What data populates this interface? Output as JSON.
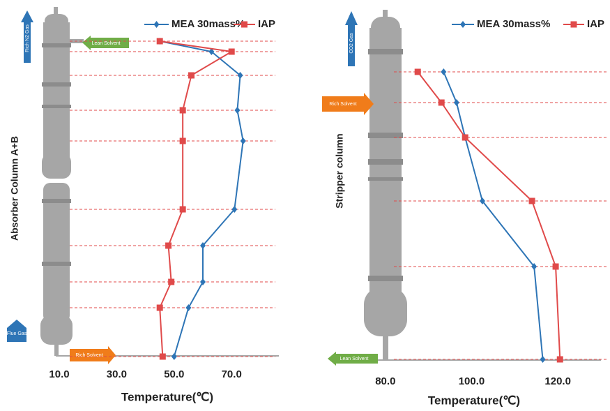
{
  "chart_data": [
    {
      "type": "line",
      "xlabel": "Temperature(℃)",
      "ylabel": "Absorber Column A+B",
      "xlim": [
        10,
        85
      ],
      "xticks": [
        {
          "value": 10,
          "label": "10.0"
        },
        {
          "value": 30,
          "label": "30.0"
        },
        {
          "value": 50,
          "label": "50.0"
        },
        {
          "value": 70,
          "label": "70.0"
        }
      ],
      "series": [
        {
          "name": "MEA 30mass%",
          "color": "#2e75b6",
          "marker": "diamond",
          "values": [
            45,
            63,
            73,
            72,
            74,
            71,
            60,
            60,
            55,
            50
          ]
        },
        {
          "name": "IAP",
          "color": "#e04a4a",
          "marker": "square",
          "values": [
            45,
            70,
            56,
            53,
            53,
            53,
            48,
            49,
            45,
            46
          ]
        }
      ],
      "annotations": [
        "Rich N2 Gas",
        "Lean Solvent",
        "Flue Gas",
        "Rich Solvent"
      ]
    },
    {
      "type": "line",
      "xlabel": "Temperature(℃)",
      "ylabel": "Stripper column",
      "xlim": [
        70,
        130
      ],
      "xticks": [
        {
          "value": 80,
          "label": "80.0"
        },
        {
          "value": 100,
          "label": "100.0"
        },
        {
          "value": 120,
          "label": "120.0"
        }
      ],
      "series": [
        {
          "name": "MEA 30mass%",
          "color": "#2e75b6",
          "marker": "diamond",
          "values": [
            93.5,
            96.5,
            98.5,
            102.5,
            114.5,
            116.5
          ]
        },
        {
          "name": "IAP",
          "color": "#e04a4a",
          "marker": "square",
          "values": [
            87.5,
            93,
            98.5,
            114,
            119.5,
            120.5
          ]
        }
      ],
      "annotations": [
        "CO2 Gas",
        "Rich Solvent",
        "Lean Solvent"
      ]
    }
  ]
}
